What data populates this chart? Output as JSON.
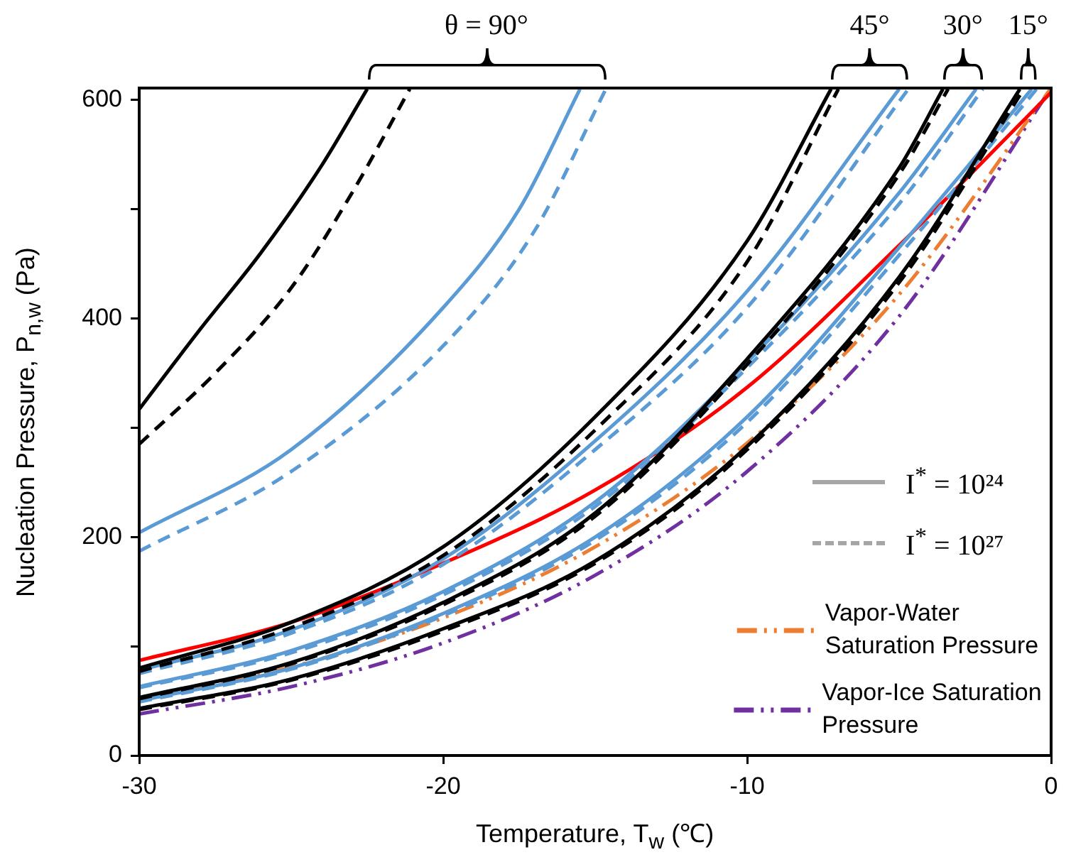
{
  "chart_data": {
    "type": "line",
    "xlabel": "Temperature, T$_{w}$ (℃)",
    "ylabel": "Nucleation Pressure, P$_{n,w}$ (Pa)",
    "xlim": [
      -30,
      0
    ],
    "xticks": [
      -30,
      -20,
      -10,
      0
    ],
    "ylim": [
      0,
      611
    ],
    "yticks": [
      0,
      {
        "value": 100,
        "label": null
      },
      200,
      {
        "value": 300,
        "label": null
      },
      400,
      {
        "value": 500,
        "label": null
      },
      600
    ],
    "grid": false,
    "legend": "bottom right",
    "annotations": [
      "θ = 90°",
      "45°",
      "30°",
      "15°",
      "I$^{*}$ = 10²⁴",
      "I$^{*}$ = 10²⁷"
    ],
    "series": [
      {
        "color": "#000000",
        "line_style": "solid",
        "x": [
          -30,
          -28,
          -26,
          -24,
          -22.5
        ],
        "values": [
          317,
          390,
          460,
          540,
          610
        ]
      },
      {
        "color": "#000000",
        "line_style": "dashed",
        "x": [
          -30,
          -27.5,
          -25,
          -23,
          -21.1
        ],
        "values": [
          285,
          350,
          428,
          515,
          610
        ]
      },
      {
        "color": "#5b9bd5",
        "line_style": "solid",
        "x": [
          -30,
          -25,
          -20,
          -17.5,
          -15.5
        ],
        "values": [
          204,
          280,
          410,
          500,
          610
        ]
      },
      {
        "color": "#5b9bd5",
        "line_style": "dashed",
        "x": [
          -30,
          -25,
          -20,
          -17,
          -14.65
        ],
        "values": [
          187,
          260,
          375,
          480,
          610
        ]
      },
      {
        "color": "#000000",
        "line_style": "solid",
        "x": [
          -30,
          -25,
          -20,
          -15,
          -10,
          -7.24
        ],
        "values": [
          80,
          122,
          191,
          310,
          471,
          610
        ]
      },
      {
        "color": "#000000",
        "line_style": "dashed",
        "x": [
          -30,
          -25,
          -20,
          -15,
          -10,
          -7.0
        ],
        "values": [
          77,
          117,
          183,
          298,
          452,
          610
        ]
      },
      {
        "color": "#5b9bd5",
        "line_style": "solid",
        "x": [
          -30,
          -25,
          -20,
          -15,
          -10,
          -5
        ],
        "values": [
          78,
          115,
          180,
          288,
          425,
          610
        ]
      },
      {
        "color": "#5b9bd5",
        "line_style": "dashed",
        "x": [
          -30,
          -25,
          -20,
          -15,
          -10,
          -4.7
        ],
        "values": [
          75,
          112,
          175,
          280,
          410,
          610
        ]
      },
      {
        "color": "#000000",
        "line_style": "solid",
        "x": [
          -30,
          -25,
          -20,
          -15,
          -10,
          -5,
          -3.56
        ],
        "values": [
          53,
          85,
          140,
          222,
          363,
          538,
          610
        ]
      },
      {
        "color": "#000000",
        "line_style": "dashed",
        "x": [
          -30,
          -25,
          -20,
          -15,
          -10,
          -5,
          -3.39
        ],
        "values": [
          52,
          84,
          138,
          219,
          358,
          532,
          610
        ]
      },
      {
        "color": "#5b9bd5",
        "line_style": "solid",
        "x": [
          -30,
          -25,
          -20,
          -15,
          -10,
          -5,
          -2.47
        ],
        "values": [
          63,
          96,
          150,
          232,
          360,
          515,
          610
        ]
      },
      {
        "color": "#5b9bd5",
        "line_style": "dashed",
        "x": [
          -30,
          -25,
          -20,
          -15,
          -10,
          -5,
          -2.25
        ],
        "values": [
          62,
          94,
          147,
          228,
          355,
          505,
          610
        ]
      },
      {
        "color": "#000000",
        "line_style": "solid",
        "x": [
          -30,
          -25,
          -20,
          -15,
          -10,
          -5,
          -1.03
        ],
        "values": [
          43,
          70,
          116,
          178,
          283,
          438,
          610
        ]
      },
      {
        "color": "#000000",
        "line_style": "dashed",
        "x": [
          -30,
          -25,
          -20,
          -15,
          -10,
          -5,
          -0.9
        ],
        "values": [
          42,
          69,
          114,
          176,
          280,
          433,
          610
        ]
      },
      {
        "color": "#5b9bd5",
        "line_style": "solid",
        "x": [
          -30,
          -25,
          -20,
          -15,
          -10,
          -5,
          -0.64
        ],
        "values": [
          50,
          80,
          130,
          200,
          310,
          465,
          610
        ]
      },
      {
        "color": "#5b9bd5",
        "line_style": "dashed",
        "x": [
          -30,
          -25,
          -20,
          -15,
          -10,
          -5,
          -0.48
        ],
        "values": [
          49,
          79,
          128,
          197,
          305,
          458,
          610
        ]
      },
      {
        "color": "#ff0000",
        "line_style": "solid",
        "x": [
          -30,
          -25,
          -20,
          -15,
          -10,
          -5,
          0
        ],
        "values": [
          87,
          122,
          176,
          243,
          337,
          467,
          607
        ]
      },
      {
        "name": "Vapor-Water Saturation Pressure",
        "color": "#ed7d31",
        "line_style": "dashdot",
        "x": [
          -30,
          -25,
          -20,
          -15,
          -10,
          -5,
          0
        ],
        "values": [
          51,
          81,
          126,
          191,
          286,
          422,
          611
        ]
      },
      {
        "name": "Vapor-Ice Saturation Pressure",
        "color": "#7030a0",
        "line_style": "dashdot",
        "x": [
          -30,
          -25,
          -20,
          -15,
          -10,
          -5,
          0
        ],
        "values": [
          38,
          63,
          103,
          165,
          260,
          402,
          611
        ]
      }
    ]
  }
}
